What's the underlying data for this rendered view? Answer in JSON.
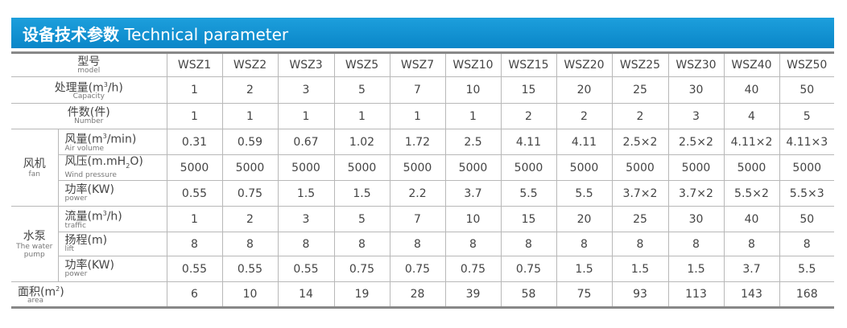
{
  "header": {
    "title_cn": "设备技术参数",
    "title_en": "Technical parameter"
  },
  "models": [
    "WSZ1",
    "WSZ2",
    "WSZ3",
    "WSZ5",
    "WSZ7",
    "WSZ10",
    "WSZ15",
    "WSZ20",
    "WSZ25",
    "WSZ30",
    "WSZ40",
    "WSZ50"
  ],
  "labels": {
    "model": {
      "cn": "型号",
      "en": "model"
    },
    "capacity": {
      "cn_pre": "处理量(m",
      "sup": "3",
      "cn_post": "/h)",
      "en": "Capacity"
    },
    "number": {
      "cn": "件数(件)",
      "en": "Number"
    },
    "fan_group": {
      "cn": "风机",
      "en": "fan"
    },
    "air_volume": {
      "cn_pre": "风量(m",
      "sup": "3",
      "cn_post": "/min)",
      "en": "Air volume"
    },
    "wind_pressure": {
      "cn_pre": "风压(m.mH",
      "sub": "2",
      "cn_post": "O)",
      "en": "Wind pressure"
    },
    "fan_power": {
      "cn": "功率(KW)",
      "en": "power"
    },
    "pump_group": {
      "cn": "水泵",
      "en1": "The water",
      "en2": "pump"
    },
    "traffic": {
      "cn_pre": "流量(m",
      "sup": "3",
      "cn_post": "/h)",
      "en": "traffic"
    },
    "lift": {
      "cn": "扬程(m)",
      "en": "lift"
    },
    "pump_power": {
      "cn": "功率(KW)",
      "en": "power"
    },
    "area": {
      "cn_pre": "面积(m",
      "sup": "2",
      "cn_post": ")",
      "en": "area"
    }
  },
  "rows": {
    "capacity": [
      "1",
      "2",
      "3",
      "5",
      "7",
      "10",
      "15",
      "20",
      "25",
      "30",
      "40",
      "50"
    ],
    "number": [
      "1",
      "1",
      "1",
      "1",
      "1",
      "1",
      "2",
      "2",
      "2",
      "3",
      "4",
      "5"
    ],
    "air_volume": [
      "0.31",
      "0.59",
      "0.67",
      "1.02",
      "1.72",
      "2.5",
      "4.11",
      "4.11",
      "2.5×2",
      "2.5×2",
      "4.11×2",
      "4.11×3"
    ],
    "wind_pressure": [
      "5000",
      "5000",
      "5000",
      "5000",
      "5000",
      "5000",
      "5000",
      "5000",
      "5000",
      "5000",
      "5000",
      "5000"
    ],
    "fan_power": [
      "0.55",
      "0.75",
      "1.5",
      "1.5",
      "2.2",
      "3.7",
      "5.5",
      "5.5",
      "3.7×2",
      "3.7×2",
      "5.5×2",
      "5.5×3"
    ],
    "traffic": [
      "1",
      "2",
      "3",
      "5",
      "7",
      "10",
      "15",
      "20",
      "25",
      "30",
      "40",
      "50"
    ],
    "lift": [
      "8",
      "8",
      "8",
      "8",
      "8",
      "8",
      "8",
      "8",
      "8",
      "8",
      "8",
      "8"
    ],
    "pump_power": [
      "0.55",
      "0.55",
      "0.55",
      "0.75",
      "0.75",
      "0.75",
      "0.75",
      "1.5",
      "1.5",
      "1.5",
      "3.7",
      "5.5"
    ],
    "area": [
      "6",
      "10",
      "14",
      "19",
      "28",
      "39",
      "58",
      "75",
      "93",
      "113",
      "143",
      "168"
    ]
  }
}
